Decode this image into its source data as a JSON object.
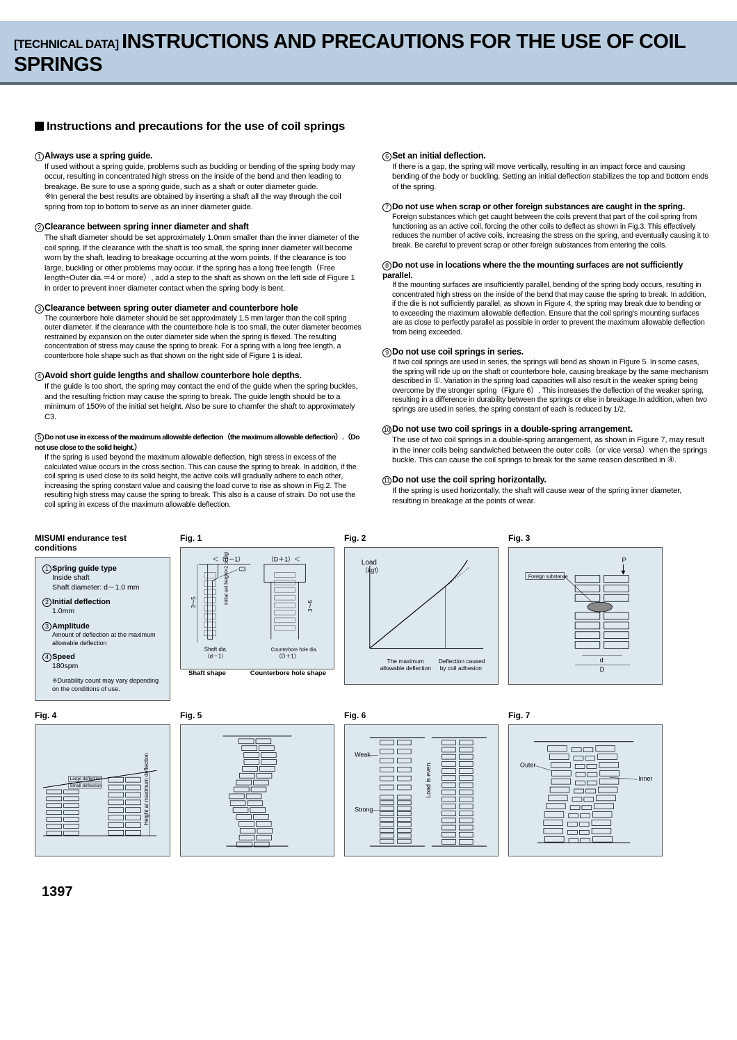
{
  "header": {
    "prefix": "[TECHNICAL DATA]",
    "title": "INSTRUCTIONS AND PRECAUTIONS FOR THE USE OF COIL SPRINGS"
  },
  "section_title": "Instructions and precautions for the use of coil springs",
  "left_items": [
    {
      "num": "1",
      "title": "Always use a spring guide.",
      "body": "If used without a spring guide, problems such as buckling or bending of the spring body may occur, resulting in concentrated high stress on the inside of the bend and then leading to breakage. Be sure to use a spring guide, such as a shaft or outer diameter guide.",
      "note": "※In general the best results are obtained by inserting a shaft all the way through the coil spring from top to bottom to serve as an inner diameter guide."
    },
    {
      "num": "2",
      "title": "Clearance between spring inner diameter and shaft",
      "body": "The shaft diameter should be set approximately 1.0mm smaller than the inner diameter of the coil spring. If the clearance with the shaft is too small, the spring inner diameter will become worn by the shaft, leading to breakage occurring at the worn points. If the clearance is too large, buckling or other problems may occur. If the spring has a long free length（Free length÷Outer dia.＝4 or more）, add a step to the shaft as shown on the left side of Figure 1 in order to prevent inner diameter contact when the spring body is bent."
    },
    {
      "num": "3",
      "title": "Clearance between spring outer diameter and counterbore hole",
      "body": "The counterbore hole diameter should be set approximately 1.5 mm larger than the coil spring outer diameter. If the clearance with the counterbore hole is too small, the outer diameter becomes restrained by expansion on the outer diameter side when the spring is flexed. The resulting concentration of stress may cause the spring to break. For a spring with a long free length, a counterbore hole shape such as that shown on the right side of Figure 1 is ideal.",
      "small_body": true
    },
    {
      "num": "4",
      "title": "Avoid short guide lengths and shallow counterbore hole depths.",
      "body": "If the guide is too short, the spring may contact the end of the guide when the spring buckles, and the resulting friction may cause the spring to break. The guide length should be to a minimum of 150% of the initial set height. Also be sure to chamfer the shaft to approximately C3."
    },
    {
      "num": "5",
      "title": "Do not use in excess of the maximum allowable deflection（the maximum allowable deflection）.（Do not use close to the solid height.）",
      "title_small": true,
      "body": "If the spring is used beyond the maximum allowable deflection, high stress in excess of the calculated value occurs in the cross section. This can cause the spring to break. In addition, if the coil spring is used close to its solid height, the active coils will gradually adhere to each other, increasing the spring constant value and causing the load curve to rise as shown in Fig.2. The resulting high stress may cause the spring to break. This also is a cause of strain. Do not use the coil spring in excess of the maximum allowable deflection.",
      "small_body": true
    }
  ],
  "right_items": [
    {
      "num": "6",
      "title": "Set an initial deflection.",
      "body": "If there is a gap, the spring will move vertically, resulting in an impact force and causing bending of the body or buckling. Setting an initial deflection stabilizes the top and bottom ends of the spring."
    },
    {
      "num": "7",
      "title": "Do not use when scrap or other foreign substances are caught in the spring.",
      "title_med": true,
      "body": "Foreign substances which get caught between the coils prevent that part of the coil spring from functioning as an active coil, forcing the other coils to deflect as shown in Fig.3. This effectively reduces the number of active coils, increasing the stress on the spring, and eventually causing it to break. Be careful to prevent scrap or other foreign substances from entering the coils.",
      "small_body": true
    },
    {
      "num": "8",
      "title": "Do not use in locations where the the mounting surfaces are not sufficiently parallel.",
      "title_med": true,
      "body": "If the mounting surfaces are insufficiently parallel, bending of the spring body occurs, resulting in concentrated high stress on the inside of the bend that may cause the spring to break. In addition, if the die is not sufficiently parallel, as shown in Figure 4, the spring may break due to bending or to exceeding the maximum allowable deflection. Ensure that the coil spring's mounting surfaces are as close to perfectly parallel as possible in order to prevent the maximum allowable deflection from being exceeded.",
      "small_body": true
    },
    {
      "num": "9",
      "title": "Do not use coil springs in series.",
      "body": "If two coil springs are used in series, the springs will bend as shown in Figure 5. In some cases, the spring will ride up on the shaft or counterbore hole, causing breakage by the same mechanism described in ①. Variation in the spring load capacities will also result in the weaker spring being overcome by the stronger spring（Figure 6）. This increases the deflection of the weaker spring, resulting in a difference in durability between the springs or else in breakage.In addition, when two springs are used in series, the spring constant of each is reduced by 1/2.",
      "small_body": true
    },
    {
      "num": "10",
      "title": "Do not use two coil springs in a double-spring arrangement.",
      "body": "The use of two coil springs in a double-spring arrangement, as shown in Figure 7, may result in the inner coils being sandwiched between the outer coils（or vice versa）when the springs buckle. This can cause the coil springs to break for the same reason described in ④."
    },
    {
      "num": "11",
      "title": "Do not use the coil spring horizontally.",
      "body": "If the spring is used horizontally, the shaft will cause wear of the spring inner diameter, resulting in breakage at the points of wear."
    }
  ],
  "endurance": {
    "title": "MISUMI endurance test conditions",
    "items": [
      {
        "num": "1",
        "title": "Spring guide type",
        "value": "Inside shaft\nShaft diameter: d－1.0 mm"
      },
      {
        "num": "2",
        "title": "Initial deflection",
        "value": "1.0mm"
      },
      {
        "num": "3",
        "title": "Amplitude",
        "value": "Amount of deflection at the maximum allowable deflection",
        "small": true
      },
      {
        "num": "4",
        "title": "Speed",
        "value": "180spm"
      }
    ],
    "note": "※Durability count may vary depending on the conditions of use."
  },
  "figs": {
    "f1": {
      "title": "Fig. 1",
      "left_top": "＜（d－1）",
      "right_top": "（D＋1）＜",
      "c3": "C3",
      "vtext": "Initial set height×2 or higher",
      "range": "3～5",
      "shaft_dia_label": "Shaft dia.",
      "shaft_dia_val": "（d－1）",
      "cb_label": "Counterbore hole dia.",
      "cb_val": "（D＋1）",
      "cap_left": "Shaft shape",
      "cap_right": "Counterbore hole shape"
    },
    "f2": {
      "title": "Fig. 2",
      "load": "Load",
      "kgf": "（kgf）",
      "cap_l": "The maximum",
      "cap_l2": "allowable deflection",
      "cap_r": "Deflection caused",
      "cap_r2": "by coil adhesion"
    },
    "f3": {
      "title": "Fig. 3",
      "p": "P",
      "foreign": "Foreign substance",
      "d_small": "d",
      "d_big": "D"
    },
    "f4": {
      "title": "Fig. 4",
      "large": "Large deflection",
      "small": "Small deflection",
      "vtext": "Height at maximum deflection"
    },
    "f5": {
      "title": "Fig. 5"
    },
    "f6": {
      "title": "Fig. 6",
      "weak": "Weak",
      "strong": "Strong",
      "vtext": "Load is even."
    },
    "f7": {
      "title": "Fig. 7",
      "outer": "Outer",
      "inner": "Inner"
    }
  },
  "page": "1397"
}
